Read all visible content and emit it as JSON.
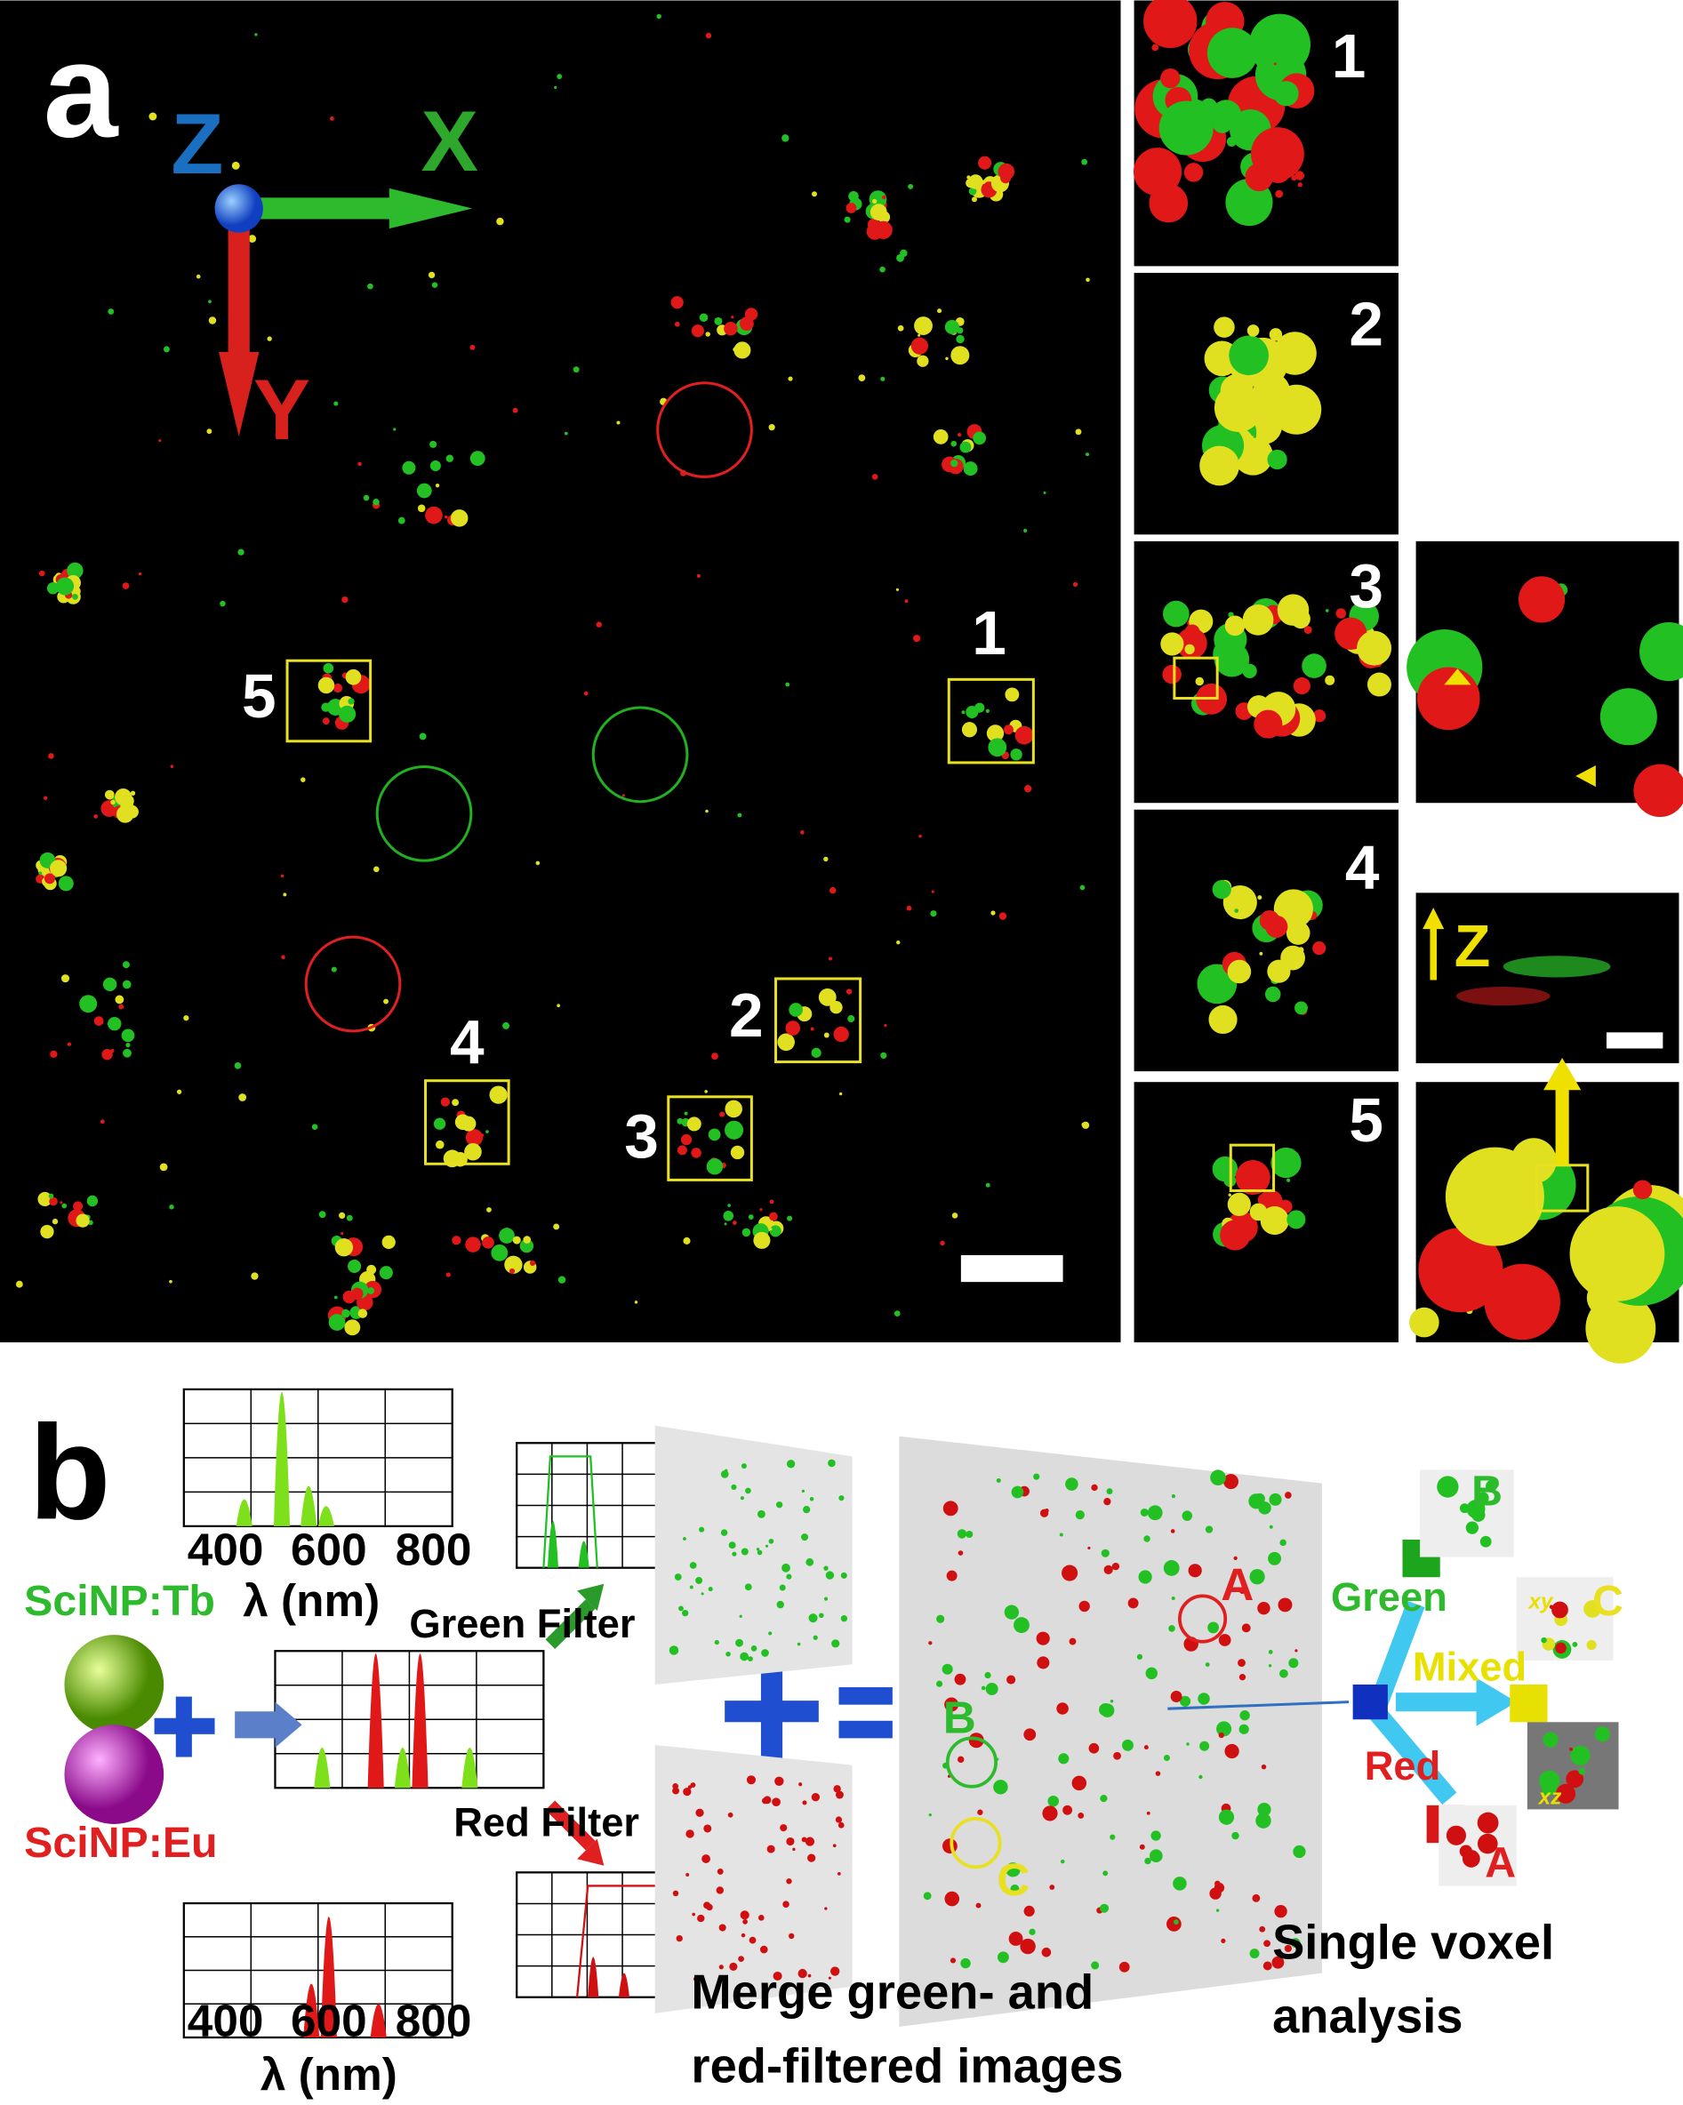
{
  "panel_a": {
    "label": "a",
    "axes": {
      "z": "Z",
      "x": "X",
      "y": "Y"
    },
    "roi_labels": [
      "1",
      "2",
      "3",
      "4",
      "5"
    ],
    "inset_labels": [
      "1",
      "2",
      "3",
      "4",
      "5"
    ],
    "side_view_axis": "Z"
  },
  "panel_b": {
    "label": "b",
    "top_spectrum": {
      "ticks": [
        400,
        600,
        800
      ],
      "axis_label": "λ (nm)"
    },
    "bottom_spectrum": {
      "ticks": [
        400,
        600,
        800
      ],
      "axis_label": "λ (nm)"
    },
    "tb_label": "SciNP:Tb",
    "eu_label": "SciNP:Eu",
    "green_filter": "Green Filter",
    "red_filter": "Red Filter",
    "merge_caption": [
      "Merge green- and",
      "red-filtered images"
    ],
    "merged_markers": [
      "A",
      "B",
      "C"
    ],
    "voxel_markers": [
      "B",
      "C",
      "A"
    ],
    "classes": [
      "Green",
      "Mixed",
      "Red"
    ],
    "views": [
      "xy",
      "xz"
    ],
    "voxel_caption": [
      "Single voxel",
      "analysis"
    ]
  }
}
